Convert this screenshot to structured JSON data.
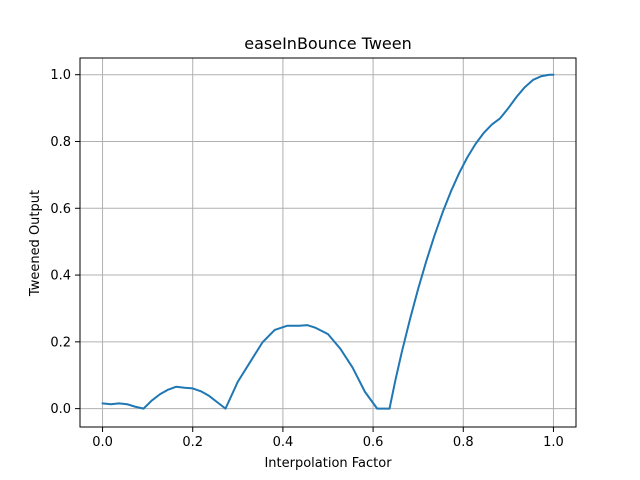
{
  "chart_data": {
    "type": "line",
    "title": "easeInBounce Tween",
    "xlabel": "Interpolation Factor",
    "ylabel": "Tweened Output",
    "xlim": [
      -0.05,
      1.05
    ],
    "ylim": [
      -0.055,
      1.05
    ],
    "xticks": [
      0.0,
      0.2,
      0.4,
      0.6,
      0.8,
      1.0
    ],
    "xtick_labels": [
      "0.0",
      "0.2",
      "0.4",
      "0.6",
      "0.8",
      "1.0"
    ],
    "yticks": [
      0.0,
      0.2,
      0.4,
      0.6,
      0.8,
      1.0
    ],
    "ytick_labels": [
      "0.0",
      "0.2",
      "0.4",
      "0.6",
      "0.8",
      "1.0"
    ],
    "grid": true,
    "series": [
      {
        "color": "#1f77b4",
        "x": [
          0.0,
          0.0182,
          0.0364,
          0.0545,
          0.0727,
          0.0909,
          0.1091,
          0.1273,
          0.1455,
          0.1636,
          0.1818,
          0.2,
          0.2182,
          0.2364,
          0.2545,
          0.2727,
          0.3,
          0.3273,
          0.3545,
          0.3818,
          0.4091,
          0.4364,
          0.4545,
          0.4727,
          0.5,
          0.5273,
          0.5545,
          0.5818,
          0.6091,
          0.6364,
          0.65,
          0.6636,
          0.6818,
          0.7,
          0.7182,
          0.7364,
          0.7545,
          0.7727,
          0.7909,
          0.8091,
          0.8273,
          0.8455,
          0.8636,
          0.8818,
          0.9,
          0.9182,
          0.9364,
          0.9545,
          0.9727,
          0.9909,
          1.0
        ],
        "y": [
          0.0156,
          0.0131,
          0.0156,
          0.0131,
          0.0056,
          0.0,
          0.0241,
          0.0431,
          0.0569,
          0.0656,
          0.0625,
          0.0606,
          0.0519,
          0.0381,
          0.0191,
          0.0,
          0.0806,
          0.1394,
          0.1981,
          0.2356,
          0.2481,
          0.2481,
          0.25,
          0.2419,
          0.2231,
          0.1794,
          0.1231,
          0.0506,
          0.0,
          0.0,
          0.0886,
          0.1691,
          0.2676,
          0.3589,
          0.4428,
          0.5194,
          0.5887,
          0.6507,
          0.7054,
          0.7528,
          0.7929,
          0.8257,
          0.8512,
          0.8694,
          0.9,
          0.9336,
          0.9626,
          0.9842,
          0.9953,
          0.9998,
          1.0
        ]
      }
    ]
  }
}
